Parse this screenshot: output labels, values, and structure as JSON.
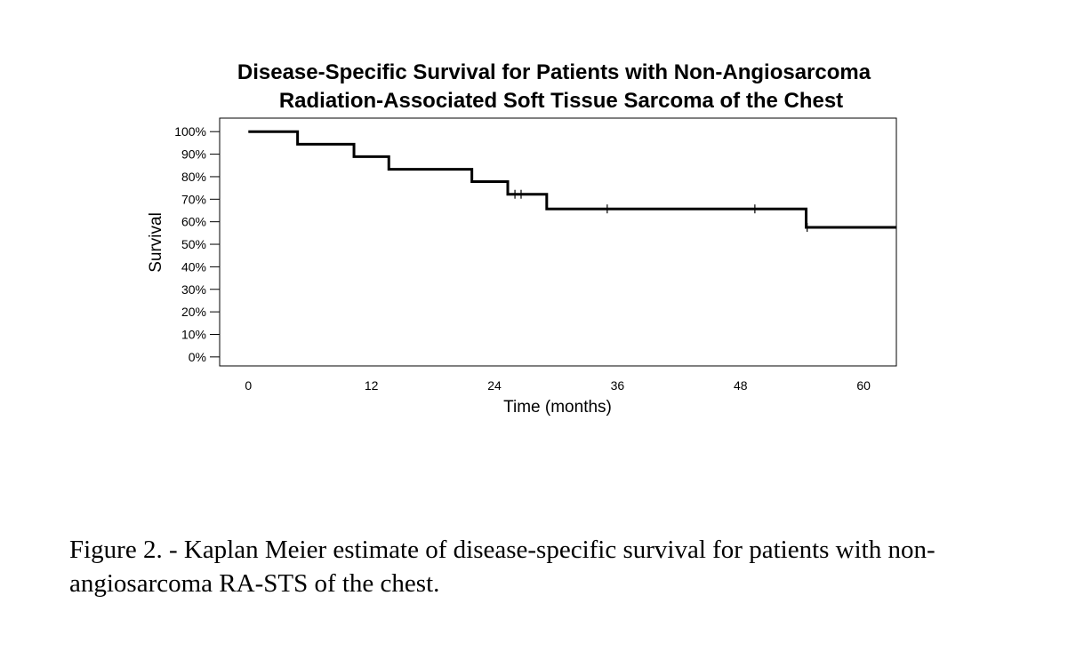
{
  "chart_data": {
    "type": "line",
    "title_line1": "Disease-Specific Survival for Patients with Non-Angiosarcoma",
    "title_line2": "Radiation-Associated Soft Tissue Sarcoma of the Chest",
    "xlabel": "Time (months)",
    "ylabel": "Survival",
    "xlim": [
      -2.8,
      63.2
    ],
    "ylim": [
      -4,
      106
    ],
    "x_ticks": [
      0,
      12,
      24,
      36,
      48,
      60
    ],
    "x_tick_labels": [
      "0",
      "12",
      "24",
      "36",
      "48",
      "60"
    ],
    "y_ticks": [
      0,
      10,
      20,
      30,
      40,
      50,
      60,
      70,
      80,
      90,
      100
    ],
    "y_tick_labels": [
      "0%",
      "10%",
      "20%",
      "30%",
      "40%",
      "50%",
      "60%",
      "70%",
      "80%",
      "90%",
      "100%"
    ],
    "grid": false,
    "line_color": "#000000",
    "steps": [
      {
        "x": 0,
        "y": 100
      },
      {
        "x": 4.8,
        "y": 94.4
      },
      {
        "x": 10.3,
        "y": 88.9
      },
      {
        "x": 13.7,
        "y": 83.3
      },
      {
        "x": 21.8,
        "y": 77.8
      },
      {
        "x": 25.3,
        "y": 72.2
      },
      {
        "x": 29.1,
        "y": 65.7
      },
      {
        "x": 54.4,
        "y": 57.5
      }
    ],
    "x_end": 63.2,
    "censor_marks": [
      {
        "x": 26.0,
        "y": 72.2
      },
      {
        "x": 26.6,
        "y": 72.2
      },
      {
        "x": 35.0,
        "y": 65.7
      },
      {
        "x": 49.4,
        "y": 65.7
      },
      {
        "x": 54.5,
        "y": 57.5
      }
    ]
  },
  "caption": {
    "line1": "Figure 2. - Kaplan Meier estimate of disease-specific survival for patients with non-",
    "line2": "angiosarcoma RA-STS of the chest."
  }
}
